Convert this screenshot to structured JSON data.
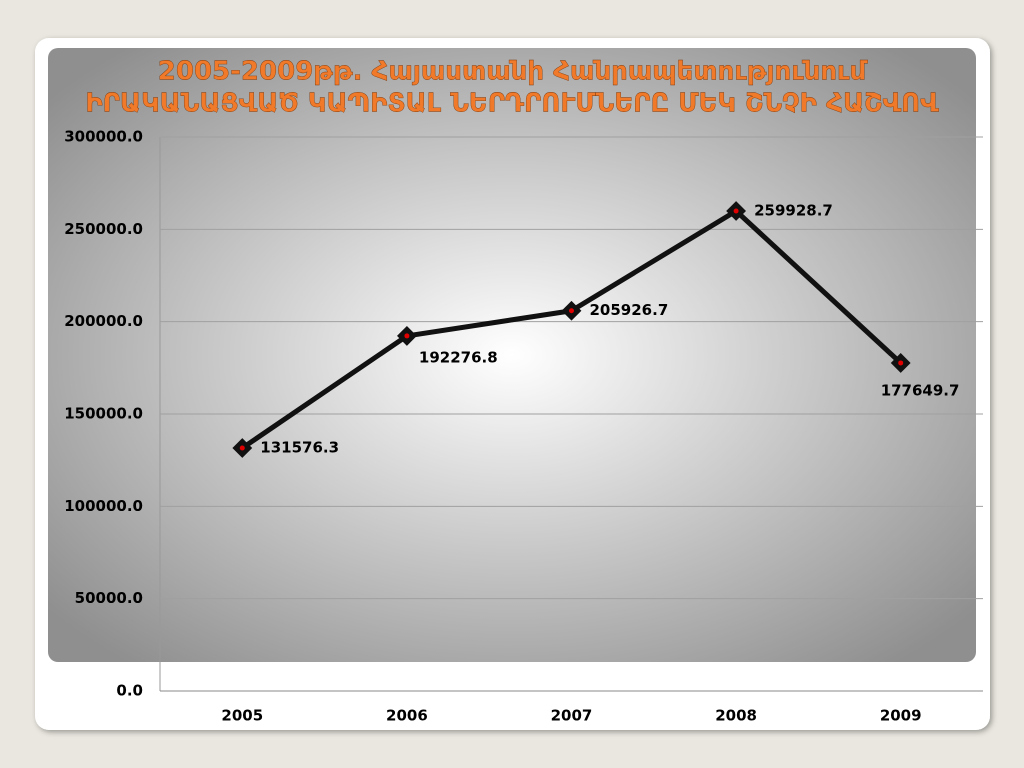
{
  "chart_data": {
    "type": "line",
    "title": [
      "2005-2009թթ. Հայաստանի Հանրապետությունում",
      "ԻՐԱԿԱՆԱՑՎԱԾ ԿԱՊԻՏԱԼ ՆԵՐԴՐՈՒՄՆԵՐԸ ՄԵԿ ՇՆՉԻ ՀԱՇՎՈՎ"
    ],
    "categories": [
      "2005",
      "2006",
      "2007",
      "2008",
      "2009"
    ],
    "values": [
      131576.3,
      192276.8,
      205926.7,
      259928.7,
      177649.7
    ],
    "color": "#111111",
    "marker_color": "#e00000",
    "ylim": [
      0,
      300000
    ],
    "yticks": [
      {
        "value": 0,
        "label": "0.0"
      },
      {
        "value": 50000,
        "label": "50000.0"
      },
      {
        "value": 100000,
        "label": "100000.0"
      },
      {
        "value": 150000,
        "label": "150000.0"
      },
      {
        "value": 200000,
        "label": "200000.0"
      },
      {
        "value": 250000,
        "label": "250000.0"
      },
      {
        "value": 300000,
        "label": "300000.0"
      }
    ],
    "grid": true
  }
}
